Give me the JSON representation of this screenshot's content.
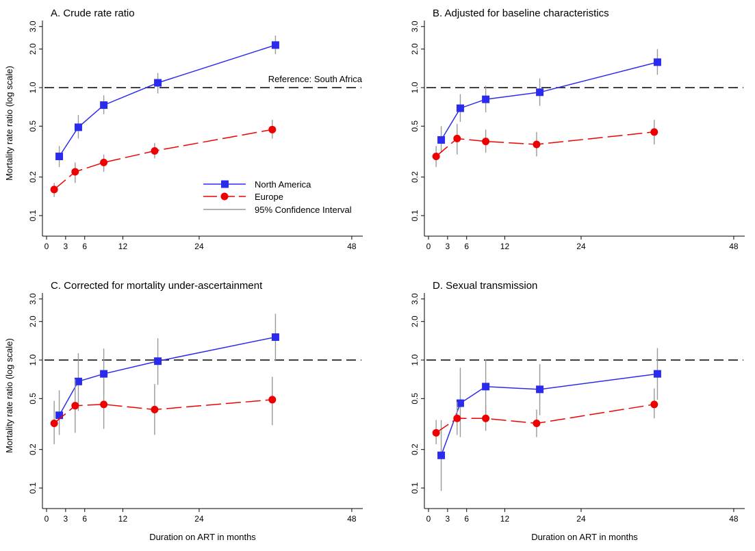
{
  "figure": {
    "ylabel": "Mortality rate ratio (log scale)",
    "xlabel": "Duration on ART in months"
  },
  "legend": {
    "items": [
      {
        "label": "North America",
        "color": "#2b2bee",
        "marker": "square",
        "dash": "solid"
      },
      {
        "label": "Europe",
        "color": "#ee0000",
        "marker": "circle",
        "dash": "long-dash"
      },
      {
        "label": "95% Confidence Interval",
        "color": "#999999",
        "marker": "none",
        "dash": "solid"
      }
    ],
    "reference_label": "Reference: South Africa"
  },
  "colors": {
    "north_america": "#2b2bee",
    "europe": "#ee0000",
    "ci": "#999999",
    "reference": "#000000"
  },
  "chart_data": [
    {
      "type": "line",
      "title": "A. Crude rate ratio",
      "xlabel": "",
      "ylabel": "Mortality rate ratio (log scale)",
      "yscale": "log",
      "ylim": [
        0.07,
        3.4
      ],
      "xlim": [
        -1,
        49
      ],
      "xticks": [
        0,
        3,
        6,
        12,
        24,
        48
      ],
      "yticks": [
        0.1,
        0.2,
        0.5,
        1.0,
        2.0,
        3.0
      ],
      "ytick_labels": [
        "0.1",
        "0.2",
        "0.5",
        "1.0",
        "2.0",
        "3.0"
      ],
      "reference_line": 1.0,
      "series": [
        {
          "name": "North America",
          "x": [
            2,
            5,
            9,
            17.5,
            36
          ],
          "y": [
            0.29,
            0.49,
            0.73,
            1.09,
            2.15
          ],
          "ci_low": [
            0.24,
            0.4,
            0.62,
            0.9,
            1.83
          ],
          "ci_high": [
            0.35,
            0.61,
            0.87,
            1.3,
            2.55
          ]
        },
        {
          "name": "Europe",
          "x": [
            1.2,
            4.5,
            9,
            17,
            35.5
          ],
          "y": [
            0.16,
            0.22,
            0.26,
            0.32,
            0.47
          ],
          "ci_low": [
            0.14,
            0.18,
            0.22,
            0.28,
            0.4
          ],
          "ci_high": [
            0.18,
            0.26,
            0.3,
            0.37,
            0.56
          ]
        }
      ]
    },
    {
      "type": "line",
      "title": "B. Adjusted for baseline characteristics",
      "xlabel": "",
      "ylabel": "",
      "yscale": "log",
      "ylim": [
        0.07,
        3.4
      ],
      "xlim": [
        -1,
        49
      ],
      "xticks": [
        0,
        3,
        6,
        12,
        24,
        48
      ],
      "yticks": [
        0.1,
        0.2,
        0.5,
        1.0,
        2.0,
        3.0
      ],
      "ytick_labels": [
        "0.1",
        "0.2",
        "0.5",
        "1.0",
        "2.0",
        "3.0"
      ],
      "reference_line": 1.0,
      "series": [
        {
          "name": "North America",
          "x": [
            2,
            5,
            9,
            17.5,
            36
          ],
          "y": [
            0.39,
            0.69,
            0.81,
            0.92,
            1.58
          ],
          "ci_low": [
            0.31,
            0.54,
            0.64,
            0.72,
            1.26
          ],
          "ci_high": [
            0.5,
            0.89,
            1.03,
            1.18,
            2.0
          ]
        },
        {
          "name": "Europe",
          "x": [
            1.2,
            4.5,
            9,
            17,
            35.5
          ],
          "y": [
            0.29,
            0.4,
            0.38,
            0.36,
            0.45
          ],
          "ci_low": [
            0.24,
            0.3,
            0.31,
            0.29,
            0.36
          ],
          "ci_high": [
            0.35,
            0.52,
            0.47,
            0.45,
            0.56
          ]
        }
      ]
    },
    {
      "type": "line",
      "title": "C. Corrected for mortality under-ascertainment",
      "xlabel": "Duration on ART in months",
      "ylabel": "Mortality rate ratio (log scale)",
      "yscale": "log",
      "ylim": [
        0.07,
        3.4
      ],
      "xlim": [
        -1,
        49
      ],
      "xticks": [
        0,
        3,
        6,
        12,
        24,
        48
      ],
      "yticks": [
        0.1,
        0.2,
        0.5,
        1.0,
        2.0,
        3.0
      ],
      "ytick_labels": [
        "0.1",
        "0.2",
        "0.5",
        "1.0",
        "2.0",
        "3.0"
      ],
      "reference_line": 1.0,
      "series": [
        {
          "name": "North America",
          "x": [
            2,
            5,
            9,
            17.5,
            36
          ],
          "y": [
            0.37,
            0.68,
            0.78,
            0.98,
            1.51
          ],
          "ci_low": [
            0.26,
            0.4,
            0.53,
            0.64,
            0.98
          ],
          "ci_high": [
            0.58,
            1.13,
            1.23,
            1.48,
            2.3
          ]
        },
        {
          "name": "Europe",
          "x": [
            1.2,
            4.5,
            9,
            17,
            35.5
          ],
          "y": [
            0.32,
            0.44,
            0.45,
            0.41,
            0.49
          ],
          "ci_low": [
            0.22,
            0.27,
            0.29,
            0.26,
            0.31
          ],
          "ci_high": [
            0.48,
            0.71,
            0.7,
            0.65,
            0.74
          ]
        }
      ]
    },
    {
      "type": "line",
      "title": "D. Sexual transmission",
      "xlabel": "Duration on ART in months",
      "ylabel": "",
      "yscale": "log",
      "ylim": [
        0.07,
        3.4
      ],
      "xlim": [
        -1,
        49
      ],
      "xticks": [
        0,
        3,
        6,
        12,
        24,
        48
      ],
      "yticks": [
        0.1,
        0.2,
        0.5,
        1.0,
        2.0,
        3.0
      ],
      "ytick_labels": [
        "0.1",
        "0.2",
        "0.5",
        "1.0",
        "2.0",
        "3.0"
      ],
      "reference_line": 1.0,
      "series": [
        {
          "name": "North America",
          "x": [
            2,
            5,
            9,
            17.5,
            36
          ],
          "y": [
            0.18,
            0.46,
            0.62,
            0.59,
            0.78
          ],
          "ci_low": [
            0.095,
            0.25,
            0.38,
            0.37,
            0.49
          ],
          "ci_high": [
            0.34,
            0.87,
            1.01,
            0.93,
            1.24
          ]
        },
        {
          "name": "Europe",
          "x": [
            1.2,
            4.5,
            9,
            17,
            35.5
          ],
          "y": [
            0.27,
            0.35,
            0.35,
            0.32,
            0.45
          ],
          "ci_low": [
            0.22,
            0.26,
            0.28,
            0.25,
            0.35
          ],
          "ci_high": [
            0.34,
            0.47,
            0.45,
            0.41,
            0.6
          ]
        }
      ]
    }
  ]
}
